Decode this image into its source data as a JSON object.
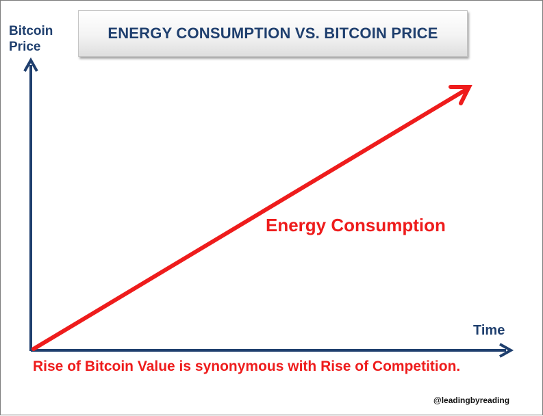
{
  "title": "ENERGY CONSUMPTION VS. BITCOIN PRICE",
  "axes": {
    "y_label_lines": [
      "Bitcoin",
      "Price"
    ],
    "x_label": "Time"
  },
  "series_label": "Energy Consumption",
  "caption": "Rise of Bitcoin Value is synonymous with Rise of Competition.",
  "credit": "@leadingbyreading",
  "colors": {
    "axis": "#1f3f6e",
    "trend": "#ee1c1c",
    "title_text": "#1f3f6e"
  }
}
